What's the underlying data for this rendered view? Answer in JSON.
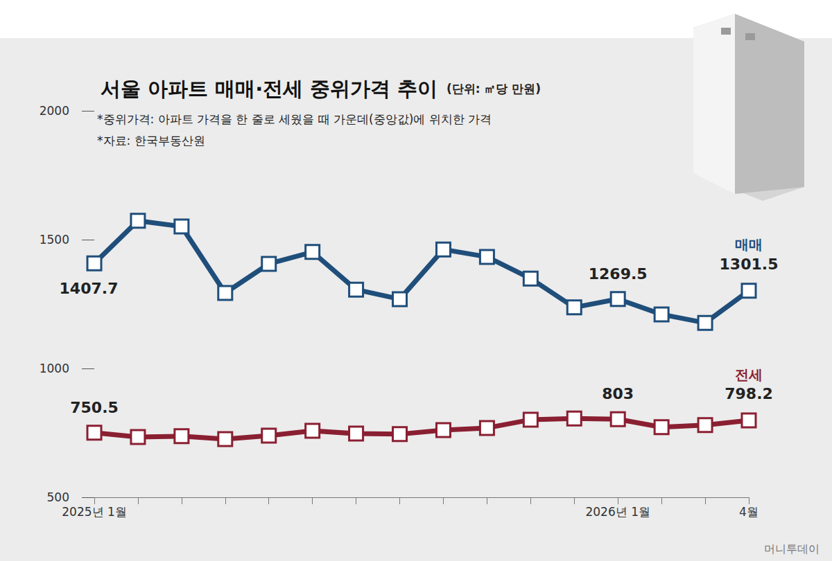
{
  "chart_data": {
    "type": "line",
    "title": "서울 아파트 매매·전세 중위가격 추이",
    "unit": "(단위: ㎡당 만원)",
    "notes": [
      "*중위가격: 아파트 가격을 한 줄로 세웠을 때 가운데(중앙값)에 위치한 가격",
      "*자료: 한국부동산원"
    ],
    "credit": "머니투데이",
    "categories": [
      "2025년 1월",
      null,
      null,
      null,
      null,
      null,
      null,
      null,
      null,
      null,
      null,
      null,
      "2026년 1월",
      null,
      null,
      "4월"
    ],
    "series": [
      {
        "name": "매매",
        "color": "#1f4e7a",
        "marker": "square",
        "values": [
          1407.7,
          1573,
          1551,
          1293,
          1406,
          1452,
          1306,
          1269,
          1462,
          1433,
          1349,
          1237,
          1269.5,
          1210,
          1177,
          1301.5
        ],
        "value_labels": [
          "1407.7",
          null,
          null,
          null,
          null,
          null,
          null,
          null,
          null,
          null,
          null,
          null,
          "1269.5",
          null,
          null,
          "1301.5"
        ]
      },
      {
        "name": "전세",
        "color": "#8a1f32",
        "marker": "square",
        "values": [
          750.5,
          734,
          737,
          726,
          739,
          758,
          747,
          745,
          761,
          769,
          801,
          806,
          803,
          772,
          780,
          798.2
        ],
        "value_labels": [
          "750.5",
          null,
          null,
          null,
          null,
          null,
          null,
          null,
          null,
          null,
          null,
          null,
          "803",
          null,
          null,
          "798.2"
        ]
      }
    ],
    "ylim": [
      500,
      2000
    ],
    "yticks": [
      500,
      1000,
      1500,
      2000
    ],
    "grid": false,
    "data_labels": true
  }
}
